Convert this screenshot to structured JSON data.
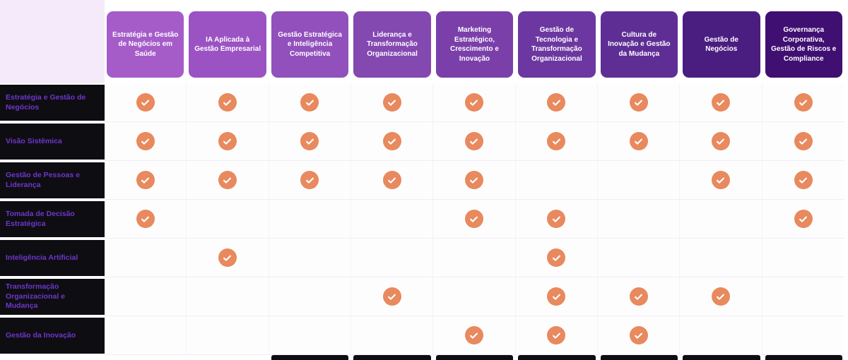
{
  "page": {
    "corner_color": "#f4eaf9",
    "background": "#ffffff"
  },
  "table": {
    "check_color": "#e8895e",
    "row_label_bg": "#0e0e12",
    "row_label_color": "#6f35cc",
    "columns": [
      {
        "label": "Estratégia e Gestão de Negócios em Saúde",
        "color": "#a55cc9"
      },
      {
        "label": "IA Aplicada à Gestão Empresarial",
        "color": "#9b53c3"
      },
      {
        "label": "Gestão Estratégica e Inteligência Competitiva",
        "color": "#9150bb"
      },
      {
        "label": "Liderança e Transformação Organizacional",
        "color": "#8448b1"
      },
      {
        "label": "Marketing Estratégico, Crescimento e Inovação",
        "color": "#7a3fa9"
      },
      {
        "label": "Gestão de Tecnologia e Transformação Organizacional",
        "color": "#6c37a0"
      },
      {
        "label": "Cultura de Inovação e Gestão da Mudança",
        "color": "#5e2e95"
      },
      {
        "label": "Gestão de Negócios",
        "color": "#4a1d80"
      },
      {
        "label": "Governança Corporativa, Gestão de Riscos e Compliance",
        "color": "#400f72"
      }
    ],
    "rows": [
      {
        "label": "Estratégia e Gestão de Negócios",
        "checks": [
          1,
          1,
          1,
          1,
          1,
          1,
          1,
          1,
          1
        ]
      },
      {
        "label": "Visão Sistêmica",
        "checks": [
          1,
          1,
          1,
          1,
          1,
          1,
          1,
          1,
          1
        ]
      },
      {
        "label": "Gestão de Pessoas e Liderança",
        "checks": [
          1,
          1,
          1,
          1,
          1,
          0,
          0,
          1,
          1
        ]
      },
      {
        "label": "Tomada de Decisão Estratégica",
        "checks": [
          1,
          0,
          0,
          0,
          1,
          1,
          0,
          0,
          1
        ]
      },
      {
        "label": "Inteligência Artificial",
        "checks": [
          0,
          1,
          0,
          0,
          0,
          1,
          0,
          0,
          0
        ]
      },
      {
        "label": "Transformação Organizacional e Mudança",
        "checks": [
          0,
          0,
          0,
          1,
          0,
          1,
          1,
          1,
          0
        ]
      },
      {
        "label": "Gestão da Inovação",
        "checks": [
          0,
          0,
          0,
          0,
          1,
          1,
          1,
          0,
          0
        ]
      }
    ],
    "bottom_bars": [
      0,
      0,
      1,
      1,
      1,
      1,
      1,
      1,
      1
    ]
  },
  "chart_data": {
    "type": "table",
    "title": "",
    "columns": [
      "Estratégia e Gestão de Negócios em Saúde",
      "IA Aplicada à Gestão Empresarial",
      "Gestão Estratégica e Inteligência Competitiva",
      "Liderança e Transformação Organizacional",
      "Marketing Estratégico, Crescimento e Inovação",
      "Gestão de Tecnologia e Transformação Organizacional",
      "Cultura de Inovação e Gestão da Mudança",
      "Gestão de Negócios",
      "Governança Corporativa, Gestão de Riscos e Compliance"
    ],
    "rows": [
      "Estratégia e Gestão de Negócios",
      "Visão Sistêmica",
      "Gestão de Pessoas e Liderança",
      "Tomada de Decisão Estratégica",
      "Inteligência Artificial",
      "Transformação Organizacional e Mudança",
      "Gestão da Inovação"
    ],
    "matrix": [
      [
        1,
        1,
        1,
        1,
        1,
        1,
        1,
        1,
        1
      ],
      [
        1,
        1,
        1,
        1,
        1,
        1,
        1,
        1,
        1
      ],
      [
        1,
        1,
        1,
        1,
        1,
        0,
        0,
        1,
        1
      ],
      [
        1,
        0,
        0,
        0,
        1,
        1,
        0,
        0,
        1
      ],
      [
        0,
        1,
        0,
        0,
        0,
        1,
        0,
        0,
        0
      ],
      [
        0,
        0,
        0,
        1,
        0,
        1,
        1,
        1,
        0
      ],
      [
        0,
        0,
        0,
        0,
        1,
        1,
        1,
        0,
        0
      ]
    ],
    "cell_marker": "check"
  }
}
